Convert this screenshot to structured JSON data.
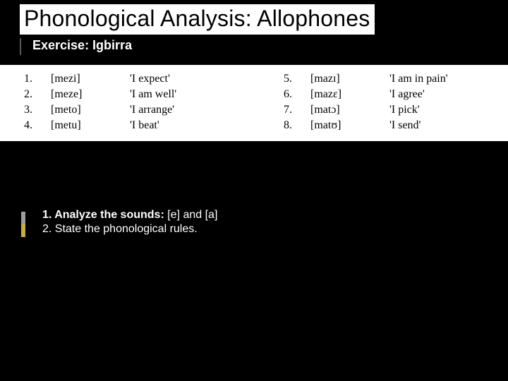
{
  "title": "Phonological Analysis: Allophones",
  "subtitle": "Exercise: Igbirra",
  "colors": {
    "background": "#000000",
    "panel": "#ffffff",
    "title_text": "#000000",
    "body_text": "#ffffff",
    "data_text": "#000000"
  },
  "typography": {
    "title_fontsize": 32,
    "subtitle_fontsize": 18,
    "data_fontsize": 16,
    "data_font_family": "Times New Roman",
    "task_fontsize": 16
  },
  "data_left": [
    {
      "n": "1.",
      "ipa": "[mezi]",
      "gloss": "'I  expect'"
    },
    {
      "n": "2.",
      "ipa": "[meze]",
      "gloss": "'I  am well'"
    },
    {
      "n": "3.",
      "ipa": "[meto]",
      "gloss": "'I  arrange'"
    },
    {
      "n": "4.",
      "ipa": "[metu]",
      "gloss": "'I  beat'"
    }
  ],
  "data_right": [
    {
      "n": "5.",
      "ipa": "[mazɪ]",
      "gloss": "'I  am  in  pain'"
    },
    {
      "n": "6.",
      "ipa": "[mazɛ]",
      "gloss": "'I  agree'"
    },
    {
      "n": "7.",
      "ipa": "[matɔ]",
      "gloss": "'I  pick'"
    },
    {
      "n": "8.",
      "ipa": "[matʊ]",
      "gloss": "'I  send'"
    }
  ],
  "tasks": {
    "line1_prefix": "1.  Analyze the sounds: ",
    "line1_suffix": "[e] and [a]",
    "line2": "2.  State the phonological rules."
  }
}
